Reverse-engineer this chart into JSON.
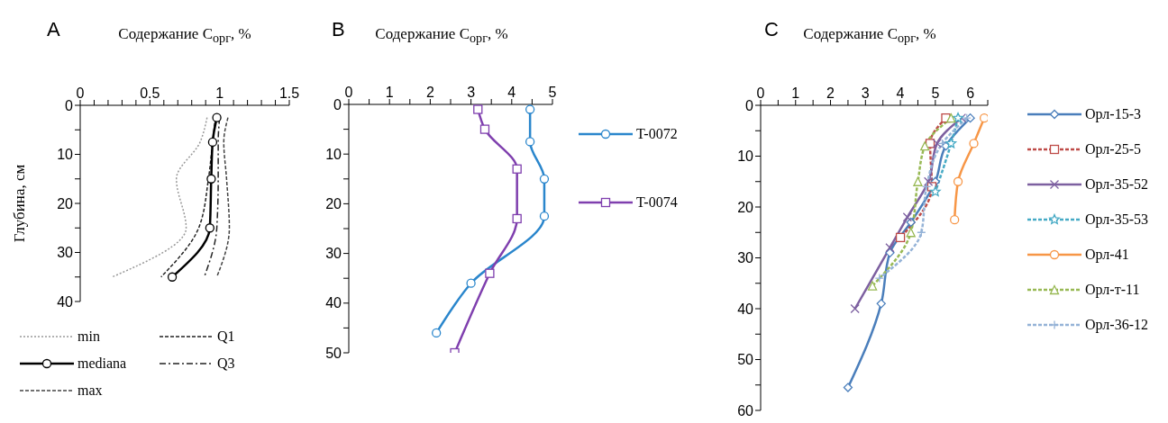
{
  "chart_data": [
    {
      "type": "line",
      "title": "A",
      "xlabel": "Содержание C$_{орг}$, %",
      "ylabel": "Глубина, см",
      "xlim": [
        0,
        1.5
      ],
      "xticks": [
        0,
        {
          "value": 0.1,
          "label": null
        },
        {
          "value": 0.2,
          "label": null
        },
        {
          "value": 0.3,
          "label": null
        },
        {
          "value": 0.4,
          "label": null
        },
        0.5,
        {
          "value": 0.6,
          "label": null
        },
        {
          "value": 0.7,
          "label": null
        },
        {
          "value": 0.8,
          "label": null
        },
        {
          "value": 0.9,
          "label": null
        },
        1,
        {
          "value": 1.1,
          "label": null
        },
        {
          "value": 1.2,
          "label": null
        },
        {
          "value": 1.3,
          "label": null
        },
        {
          "value": 1.4,
          "label": null
        },
        1.5
      ],
      "ylim": [
        40,
        0
      ],
      "yticks": [
        0,
        {
          "value": 5,
          "label": null
        },
        10,
        {
          "value": 15,
          "label": null
        },
        20,
        {
          "value": 25,
          "label": null
        },
        30,
        {
          "value": 35,
          "label": null
        },
        40
      ],
      "legend": "bottom",
      "grid": false,
      "series": [
        {
          "name": "min",
          "color": "#999999",
          "line_style": "dotted",
          "marker": "none",
          "x": [
            0.91,
            0.86,
            0.69,
            0.76,
            0.23
          ],
          "values": [
            2.5,
            7.5,
            15,
            25,
            35
          ]
        },
        {
          "name": "Q1",
          "color": "#222222",
          "line_style": "dashed",
          "marker": "none",
          "x": [
            0.97,
            0.95,
            0.92,
            0.85,
            0.58
          ],
          "values": [
            2.5,
            7.5,
            15,
            25,
            35
          ]
        },
        {
          "name": "mediana",
          "color": "#000000",
          "line_style": "solid",
          "marker": "circle",
          "x": [
            0.98,
            0.95,
            0.94,
            0.93,
            0.66
          ],
          "values": [
            2.5,
            7.5,
            15,
            25,
            35
          ]
        },
        {
          "name": "Q3",
          "color": "#222222",
          "line_style": "dashdot",
          "marker": "none",
          "x": [
            1.0,
            0.99,
            0.99,
            0.98,
            0.89
          ],
          "values": [
            2.5,
            7.5,
            15,
            25,
            35
          ]
        },
        {
          "name": "max",
          "color": "#444444",
          "line_style": "dashed",
          "marker": "none",
          "x": [
            1.06,
            1.03,
            1.05,
            1.07,
            0.98
          ],
          "values": [
            2.5,
            7.5,
            15,
            25,
            35
          ]
        }
      ]
    },
    {
      "type": "line",
      "title": "B",
      "xlabel": "Содержание C$_{орг}$, %",
      "xlim": [
        0,
        5
      ],
      "xticks": [
        0,
        {
          "value": 0.5,
          "label": null
        },
        1,
        {
          "value": 1.5,
          "label": null
        },
        2,
        {
          "value": 2.5,
          "label": null
        },
        3,
        {
          "value": 3.5,
          "label": null
        },
        4,
        {
          "value": 4.5,
          "label": null
        },
        5
      ],
      "ylim": [
        50,
        0
      ],
      "yticks": [
        0,
        {
          "value": 5,
          "label": null
        },
        10,
        {
          "value": 15,
          "label": null
        },
        20,
        {
          "value": 25,
          "label": null
        },
        30,
        {
          "value": 35,
          "label": null
        },
        40,
        {
          "value": 45,
          "label": null
        },
        50
      ],
      "legend": "right",
      "grid": false,
      "series": [
        {
          "name": "T-0072",
          "color": "#2a86cc",
          "line_style": "solid",
          "marker": "circle",
          "x": [
            4.45,
            4.45,
            4.8,
            4.8,
            3.0,
            2.15
          ],
          "values": [
            1,
            7.5,
            15,
            22.5,
            36,
            46
          ]
        },
        {
          "name": "T-0074",
          "color": "#7f3fae",
          "line_style": "solid",
          "marker": "square",
          "x": [
            3.17,
            3.34,
            4.13,
            4.13,
            3.46,
            2.6
          ],
          "values": [
            1,
            5,
            13,
            23,
            34,
            50
          ]
        }
      ]
    },
    {
      "type": "line",
      "title": "C",
      "xlabel": "Содержание C$_{орг}$, %",
      "xlim": [
        0,
        6.5
      ],
      "xticks": [
        0,
        {
          "value": 0.5,
          "label": null
        },
        1,
        {
          "value": 1.5,
          "label": null
        },
        2,
        {
          "value": 2.5,
          "label": null
        },
        3,
        {
          "value": 3.5,
          "label": null
        },
        4,
        {
          "value": 4.5,
          "label": null
        },
        5,
        {
          "value": 5.5,
          "label": null
        },
        6,
        {
          "value": 6.5,
          "label": null
        }
      ],
      "ylim": [
        60,
        0
      ],
      "yticks": [
        0,
        {
          "value": 5,
          "label": null
        },
        10,
        {
          "value": 15,
          "label": null
        },
        20,
        {
          "value": 25,
          "label": null
        },
        30,
        {
          "value": 35,
          "label": null
        },
        40,
        {
          "value": 45,
          "label": null
        },
        50,
        {
          "value": 55,
          "label": null
        },
        60
      ],
      "legend": "right",
      "grid": false,
      "series": [
        {
          "name": "Орл-15-3",
          "color": "#4a7ebb",
          "line_style": "solid",
          "marker": "diamond",
          "x": [
            6.0,
            5.3,
            5.0,
            4.3,
            3.7,
            3.45,
            2.5
          ],
          "values": [
            2.5,
            8,
            15,
            23,
            29,
            39,
            55.5
          ]
        },
        {
          "name": "Орл-25-5",
          "color": "#be4b48",
          "line_style": "dashed",
          "marker": "square",
          "x": [
            5.3,
            4.85,
            4.9,
            4.0
          ],
          "values": [
            2.5,
            7.5,
            16,
            26
          ]
        },
        {
          "name": "Орл-35-52",
          "color": "#7d60a0",
          "line_style": "solid",
          "marker": "cross",
          "x": [
            5.75,
            5.05,
            4.8,
            4.2,
            3.7,
            2.7
          ],
          "values": [
            2.5,
            7.5,
            15,
            22,
            28,
            40
          ]
        },
        {
          "name": "Орл-35-53",
          "color": "#46aac5",
          "line_style": "dashed",
          "marker": "star",
          "x": [
            5.65,
            5.45,
            5.0
          ],
          "values": [
            2.5,
            7.5,
            17
          ]
        },
        {
          "name": "Орл-41",
          "color": "#f79646",
          "line_style": "solid",
          "marker": "circle",
          "x": [
            6.4,
            6.1,
            5.65,
            5.55
          ],
          "values": [
            2.5,
            7.5,
            15,
            22.5
          ]
        },
        {
          "name": "Орл-т-11",
          "color": "#98b954",
          "line_style": "dashed",
          "marker": "triangle",
          "x": [
            5.45,
            4.7,
            4.5,
            4.3,
            3.2
          ],
          "values": [
            2.5,
            8,
            15,
            25,
            35.5
          ]
        },
        {
          "name": "Орл-36-12",
          "color": "#95b3d7",
          "line_style": "dashed",
          "marker": "plus",
          "x": [
            5.9,
            5.2,
            4.75,
            4.6,
            3.4
          ],
          "values": [
            2.5,
            7.5,
            16,
            25,
            34
          ]
        }
      ]
    }
  ]
}
